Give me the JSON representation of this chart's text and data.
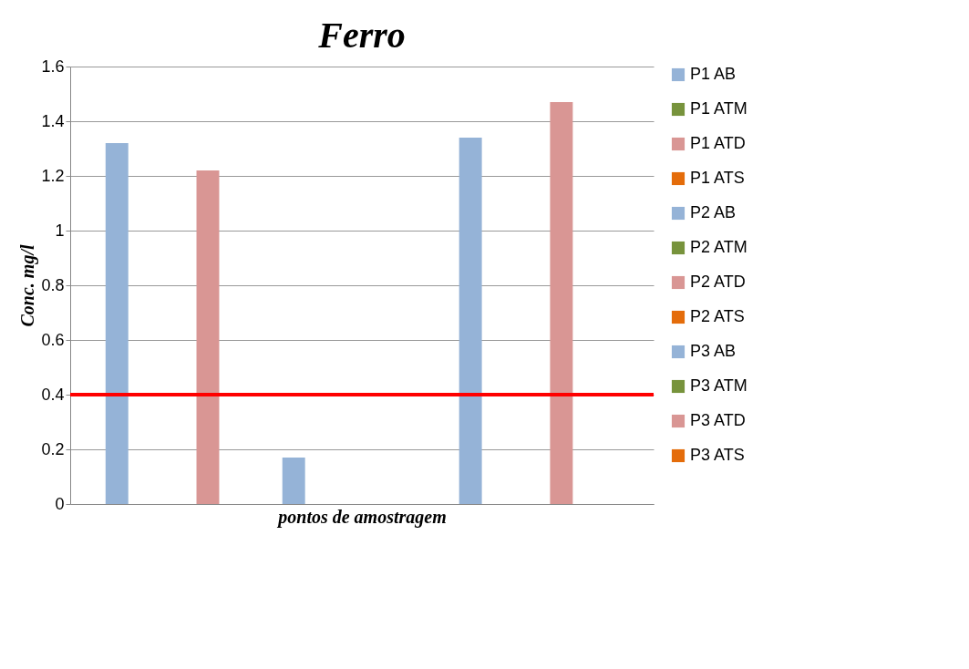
{
  "chart_data": {
    "type": "bar",
    "title": "Ferro",
    "xlabel": "pontos de amostragem",
    "ylabel": "Conc. mg/l",
    "categories": [
      null,
      null,
      null
    ],
    "series": [
      {
        "name": "P1 AB",
        "color": "#95b3d7",
        "values": [
          1.32,
          null,
          null
        ]
      },
      {
        "name": "P1 ATM",
        "color": "#77933c",
        "values": [
          0,
          null,
          null
        ]
      },
      {
        "name": "P1 ATD",
        "color": "#d99694",
        "values": [
          1.22,
          null,
          null
        ]
      },
      {
        "name": "P1 ATS",
        "color": "#e46c0a",
        "values": [
          0,
          null,
          null
        ]
      },
      {
        "name": "P2 AB",
        "color": "#95b3d7",
        "values": [
          null,
          0.17,
          null
        ]
      },
      {
        "name": "P2 ATM",
        "color": "#77933c",
        "values": [
          null,
          0,
          null
        ]
      },
      {
        "name": "P2 ATD",
        "color": "#d99694",
        "values": [
          null,
          0,
          null
        ]
      },
      {
        "name": "P2 ATS",
        "color": "#e46c0a",
        "values": [
          null,
          0,
          null
        ]
      },
      {
        "name": "P3 AB",
        "color": "#95b3d7",
        "values": [
          null,
          null,
          1.34
        ]
      },
      {
        "name": "P3 ATM",
        "color": "#77933c",
        "values": [
          null,
          null,
          0
        ]
      },
      {
        "name": "P3 ATD",
        "color": "#d99694",
        "values": [
          null,
          null,
          1.47
        ]
      },
      {
        "name": "P3 ATS",
        "color": "#e46c0a",
        "values": [
          null,
          null,
          0
        ]
      }
    ],
    "ylim": [
      0,
      1.6
    ],
    "yticks": [
      0,
      0.2,
      0.4,
      0.6,
      0.8,
      1,
      1.2,
      1.4,
      1.6
    ],
    "ref_lines": [
      {
        "axis": "y",
        "value": 0.4,
        "color": "#ff0000"
      }
    ],
    "grid": "y",
    "legend": "right",
    "tick_labels": "y"
  }
}
